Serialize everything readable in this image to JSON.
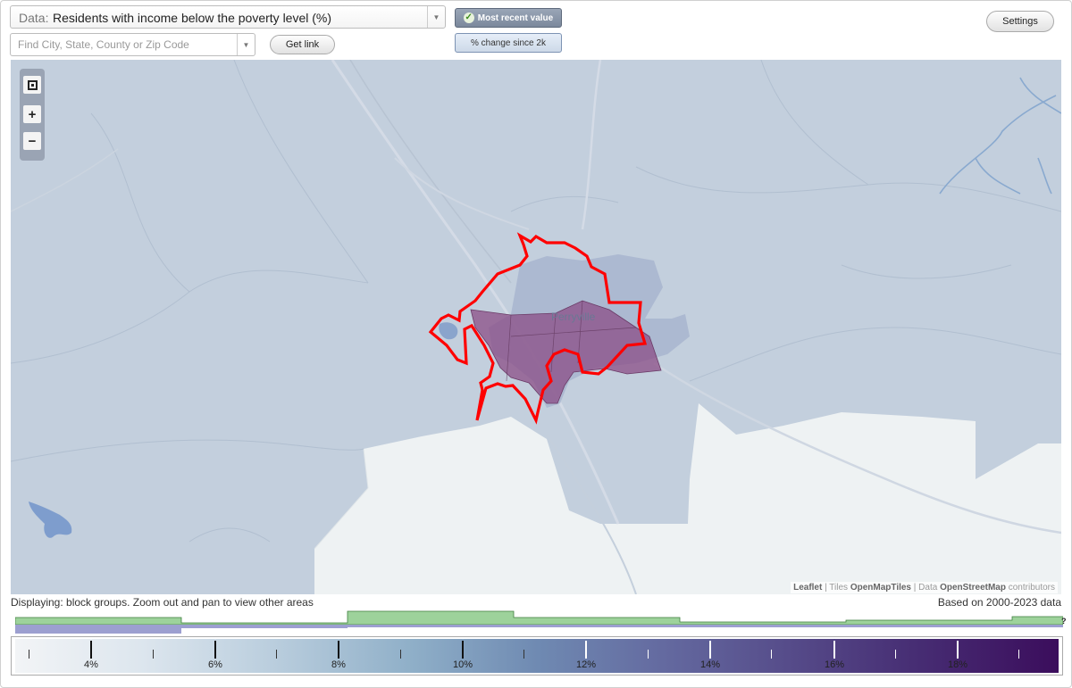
{
  "header": {
    "data_prefix": "Data:",
    "data_value": "Residents with income below the poverty level (%)",
    "search_placeholder": "Find City, State, County or Zip Code",
    "get_link_label": "Get link",
    "settings_label": "Settings",
    "toggle_recent_label": "Most recent value",
    "toggle_change_label": "% change since 2k"
  },
  "map": {
    "place_label": "Perryville",
    "attribution": {
      "leaflet": "Leaflet",
      "sep1": " | Tiles ",
      "tiles": "OpenMapTiles",
      "sep2": " | Data ",
      "data": "OpenStreetMap",
      "suffix": " contributors"
    },
    "highlight_color": "#ff0000",
    "selection_fill": "#8b4d85"
  },
  "footer": {
    "displaying": "Displaying: block groups. Zoom out and pan to view other areas",
    "based_on": "Based on 2000-2023 data",
    "help_mark": "?"
  },
  "legend": {
    "labels": [
      "4%",
      "6%",
      "8%",
      "10%",
      "12%",
      "14%",
      "16%",
      "18%"
    ]
  }
}
